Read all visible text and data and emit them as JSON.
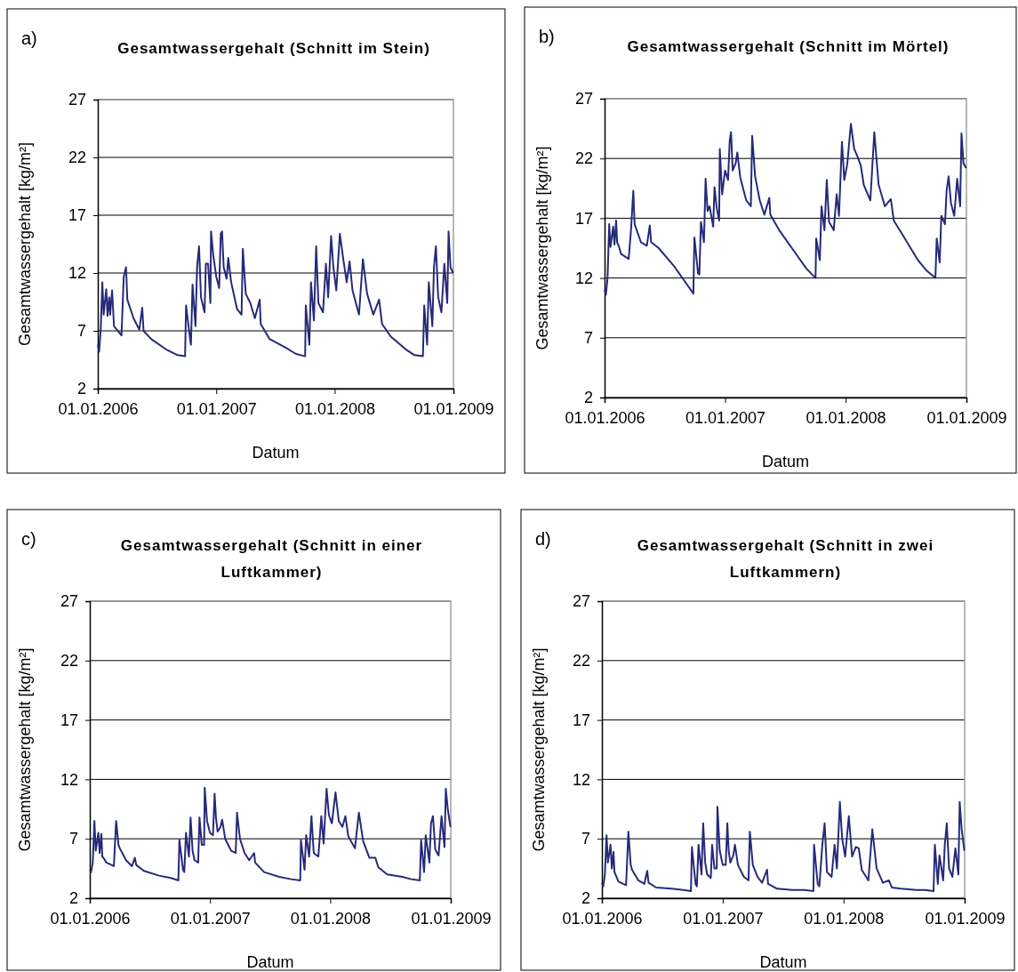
{
  "chart_data": [
    {
      "type": "line",
      "title": "Gesamtwassergehalt (Schnitt im Stein)",
      "xlabel": "Datum",
      "ylabel": "Gesamtwassergehalt [kg/m²]",
      "annotations": [
        "a)"
      ],
      "grid": "y",
      "xlim": [
        "2006-01-01",
        "2009-01-01"
      ],
      "xticks": [
        {
          "value": "2006-01-01",
          "label": "01.01.2006"
        },
        {
          "value": "2007-01-01",
          "label": "01.01.2007"
        },
        {
          "value": "2008-01-01",
          "label": "01.01.2008"
        },
        {
          "value": "2009-01-01",
          "label": "01.01.2009"
        }
      ],
      "ylim": [
        2,
        27
      ],
      "yticks": [
        2,
        7,
        12,
        17,
        22,
        27
      ],
      "x": [
        "2006-01-01",
        "2006-01-05",
        "2006-01-10",
        "2006-01-15",
        "2006-01-19",
        "2006-01-27",
        "2006-01-31",
        "2006-02-05",
        "2006-02-08",
        "2006-02-14",
        "2006-02-20",
        "2006-03-15",
        "2006-03-22",
        "2006-03-29",
        "2006-04-02",
        "2006-04-21",
        "2006-05-09",
        "2006-05-18",
        "2006-05-22",
        "2006-06-14",
        "2006-07-30",
        "2006-09-04",
        "2006-09-27",
        "2006-09-30",
        "2006-10-11",
        "2006-10-15",
        "2006-10-20",
        "2006-10-29",
        "2006-11-03",
        "2006-11-09",
        "2006-11-15",
        "2006-11-26",
        "2006-11-30",
        "2006-12-07",
        "2006-12-14",
        "2006-12-16",
        "2006-12-23",
        "2007-01-01",
        "2007-01-10",
        "2007-01-15",
        "2007-01-19",
        "2007-01-24",
        "2007-02-02",
        "2007-02-07",
        "2007-02-16",
        "2007-03-06",
        "2007-03-20",
        "2007-03-24",
        "2007-04-02",
        "2007-04-16",
        "2007-04-30",
        "2007-05-15",
        "2007-05-18",
        "2007-06-14",
        "2007-07-30",
        "2007-09-04",
        "2007-10-02",
        "2007-10-04",
        "2007-10-15",
        "2007-10-20",
        "2007-10-29",
        "2007-11-05",
        "2007-11-12",
        "2007-11-26",
        "2007-12-05",
        "2007-12-12",
        "2007-12-21",
        "2007-12-28",
        "2008-01-06",
        "2008-01-17",
        "2008-01-27",
        "2008-02-07",
        "2008-02-16",
        "2008-02-25",
        "2008-03-16",
        "2008-03-28",
        "2008-04-10",
        "2008-04-29",
        "2008-05-17",
        "2008-05-26",
        "2008-06-22",
        "2008-08-07",
        "2008-09-03",
        "2008-09-29",
        "2008-10-03",
        "2008-10-12",
        "2008-10-17",
        "2008-10-28",
        "2008-11-02",
        "2008-11-08",
        "2008-11-15",
        "2008-11-25",
        "2008-12-04",
        "2008-12-13",
        "2008-12-17",
        "2008-12-23",
        "2008-12-31"
      ],
      "series": [
        {
          "color": "#262a78",
          "values": [
            5.8,
            5.2,
            7.1,
            11.2,
            8.4,
            10.6,
            8.3,
            9.9,
            8.4,
            10.5,
            7.4,
            6.6,
            11.7,
            12.5,
            9.7,
            8.1,
            7.1,
            9.0,
            7.0,
            6.3,
            5.4,
            4.9,
            4.8,
            9.2,
            6.6,
            5.8,
            11.0,
            7.4,
            12.5,
            14.3,
            9.9,
            8.6,
            12.8,
            12.8,
            9.4,
            15.6,
            13.5,
            11.7,
            10.7,
            15.4,
            15.6,
            12.5,
            11.5,
            13.3,
            11.2,
            8.9,
            8.4,
            14.1,
            10.2,
            9.4,
            8.1,
            9.7,
            7.6,
            6.3,
            5.6,
            5.0,
            4.8,
            9.2,
            5.8,
            11.2,
            7.9,
            14.3,
            9.4,
            8.6,
            12.8,
            9.9,
            15.2,
            12.5,
            10.5,
            15.4,
            13.3,
            11.2,
            13.0,
            10.5,
            8.4,
            13.2,
            10.2,
            8.4,
            9.7,
            7.6,
            6.5,
            5.4,
            4.9,
            4.8,
            9.2,
            5.8,
            11.2,
            7.4,
            12.5,
            14.3,
            9.9,
            8.6,
            12.8,
            9.4,
            15.6,
            12.5,
            12.0
          ]
        }
      ]
    },
    {
      "type": "line",
      "title": "Gesamtwassergehalt (Schnitt im Mörtel)",
      "xlabel": "Datum",
      "ylabel": "Gesamtwassergehalt [kg/m²]",
      "annotations": [
        "b)"
      ],
      "grid": "y",
      "xlim": [
        "2006-01-01",
        "2009-01-01"
      ],
      "xticks": [
        {
          "value": "2006-01-01",
          "label": "01.01.2006"
        },
        {
          "value": "2007-01-01",
          "label": "01.01.2007"
        },
        {
          "value": "2008-01-01",
          "label": "01.01.2008"
        },
        {
          "value": "2009-01-01",
          "label": "01.01.2009"
        }
      ],
      "ylim": [
        2,
        27
      ],
      "yticks": [
        2,
        7,
        12,
        17,
        22,
        27
      ],
      "x": [
        "2006-01-01",
        "2006-01-05",
        "2006-01-10",
        "2006-01-15",
        "2006-01-19",
        "2006-01-27",
        "2006-01-31",
        "2006-02-05",
        "2006-02-08",
        "2006-02-14",
        "2006-02-20",
        "2006-03-15",
        "2006-03-22",
        "2006-03-29",
        "2006-04-02",
        "2006-04-21",
        "2006-05-09",
        "2006-05-18",
        "2006-05-22",
        "2006-06-14",
        "2006-07-30",
        "2006-09-04",
        "2006-09-27",
        "2006-09-30",
        "2006-10-11",
        "2006-10-15",
        "2006-10-20",
        "2006-10-29",
        "2006-11-03",
        "2006-11-09",
        "2006-11-15",
        "2006-11-26",
        "2006-11-30",
        "2006-12-07",
        "2006-12-14",
        "2006-12-16",
        "2006-12-23",
        "2007-01-01",
        "2007-01-10",
        "2007-01-15",
        "2007-01-19",
        "2007-01-24",
        "2007-02-02",
        "2007-02-07",
        "2007-02-16",
        "2007-03-06",
        "2007-03-20",
        "2007-03-24",
        "2007-04-02",
        "2007-04-16",
        "2007-04-30",
        "2007-05-15",
        "2007-05-18",
        "2007-06-14",
        "2007-07-30",
        "2007-09-04",
        "2007-10-02",
        "2007-10-04",
        "2007-10-15",
        "2007-10-20",
        "2007-10-29",
        "2007-11-05",
        "2007-11-12",
        "2007-11-26",
        "2007-12-05",
        "2007-12-12",
        "2007-12-21",
        "2007-12-28",
        "2008-01-06",
        "2008-01-17",
        "2008-01-27",
        "2008-02-07",
        "2008-02-16",
        "2008-02-25",
        "2008-03-16",
        "2008-03-28",
        "2008-04-10",
        "2008-04-29",
        "2008-05-17",
        "2008-05-26",
        "2008-06-22",
        "2008-08-07",
        "2008-09-03",
        "2008-09-29",
        "2008-10-03",
        "2008-10-12",
        "2008-10-17",
        "2008-10-28",
        "2008-11-02",
        "2008-11-08",
        "2008-11-15",
        "2008-11-25",
        "2008-12-04",
        "2008-12-13",
        "2008-12-17",
        "2008-12-23",
        "2008-12-31"
      ],
      "series": [
        {
          "color": "#262a78",
          "values": [
            11.0,
            10.6,
            12.0,
            16.5,
            14.6,
            16.3,
            14.8,
            16.8,
            15.0,
            14.6,
            14.0,
            13.6,
            16.0,
            19.3,
            16.5,
            15.0,
            14.7,
            16.4,
            15.0,
            14.5,
            13.0,
            11.6,
            10.7,
            15.4,
            12.4,
            12.3,
            16.7,
            15.0,
            20.3,
            17.6,
            18.0,
            16.3,
            19.6,
            17.8,
            16.8,
            22.8,
            19.0,
            21.0,
            20.2,
            23.5,
            24.2,
            21.0,
            21.6,
            22.5,
            20.4,
            18.5,
            18.0,
            23.9,
            20.5,
            18.5,
            17.3,
            18.7,
            17.3,
            16.0,
            14.2,
            12.8,
            12.0,
            15.3,
            13.5,
            18.0,
            16.0,
            20.2,
            16.7,
            16.0,
            19.0,
            17.2,
            23.4,
            20.2,
            21.5,
            24.9,
            22.8,
            22.1,
            21.4,
            19.8,
            18.5,
            24.2,
            19.8,
            18.0,
            18.6,
            16.8,
            15.6,
            13.5,
            12.6,
            12.0,
            15.3,
            13.3,
            17.2,
            16.5,
            19.3,
            20.5,
            18.3,
            17.2,
            20.3,
            18.0,
            24.1,
            21.6,
            21.2
          ]
        }
      ]
    },
    {
      "type": "line",
      "title": "Gesamtwassergehalt (Schnitt in einer Luftkammer)",
      "xlabel": "Datum",
      "ylabel": "Gesamtwassergehalt [kg/m²]",
      "annotations": [
        "c)"
      ],
      "grid": "y",
      "xlim": [
        "2006-01-01",
        "2009-01-01"
      ],
      "xticks": [
        {
          "value": "2006-01-01",
          "label": "01.01.2006"
        },
        {
          "value": "2007-01-01",
          "label": "01.01.2007"
        },
        {
          "value": "2008-01-01",
          "label": "01.01.2008"
        },
        {
          "value": "2009-01-01",
          "label": "01.01.2009"
        }
      ],
      "ylim": [
        2,
        27
      ],
      "yticks": [
        2,
        7,
        12,
        17,
        22,
        27
      ],
      "x": [
        "2006-01-01",
        "2006-01-05",
        "2006-01-10",
        "2006-01-15",
        "2006-01-19",
        "2006-01-27",
        "2006-01-31",
        "2006-02-05",
        "2006-02-08",
        "2006-02-14",
        "2006-02-20",
        "2006-03-15",
        "2006-03-22",
        "2006-03-29",
        "2006-04-02",
        "2006-04-21",
        "2006-05-09",
        "2006-05-18",
        "2006-05-22",
        "2006-06-14",
        "2006-07-30",
        "2006-09-04",
        "2006-09-27",
        "2006-09-30",
        "2006-10-11",
        "2006-10-15",
        "2006-10-20",
        "2006-10-29",
        "2006-11-03",
        "2006-11-09",
        "2006-11-15",
        "2006-11-26",
        "2006-11-30",
        "2006-12-07",
        "2006-12-14",
        "2006-12-16",
        "2006-12-23",
        "2007-01-01",
        "2007-01-10",
        "2007-01-15",
        "2007-01-19",
        "2007-01-24",
        "2007-02-02",
        "2007-02-07",
        "2007-02-16",
        "2007-03-06",
        "2007-03-20",
        "2007-03-24",
        "2007-04-02",
        "2007-04-16",
        "2007-04-30",
        "2007-05-15",
        "2007-05-18",
        "2007-06-14",
        "2007-07-30",
        "2007-09-04",
        "2007-10-02",
        "2007-10-04",
        "2007-10-15",
        "2007-10-20",
        "2007-10-29",
        "2007-11-05",
        "2007-11-12",
        "2007-11-26",
        "2007-12-05",
        "2007-12-12",
        "2007-12-21",
        "2007-12-28",
        "2008-01-06",
        "2008-01-17",
        "2008-01-27",
        "2008-02-07",
        "2008-02-16",
        "2008-02-25",
        "2008-03-16",
        "2008-03-28",
        "2008-04-10",
        "2008-04-29",
        "2008-05-17",
        "2008-05-26",
        "2008-06-22",
        "2008-08-07",
        "2008-09-03",
        "2008-09-29",
        "2008-10-03",
        "2008-10-12",
        "2008-10-17",
        "2008-10-28",
        "2008-11-02",
        "2008-11-08",
        "2008-11-15",
        "2008-11-25",
        "2008-12-04",
        "2008-12-13",
        "2008-12-17",
        "2008-12-23",
        "2008-12-31"
      ],
      "series": [
        {
          "color": "#262a78",
          "values": [
            4.4,
            4.2,
            5.0,
            8.5,
            6.0,
            7.5,
            5.8,
            7.4,
            5.5,
            5.3,
            5.0,
            4.7,
            8.5,
            6.5,
            6.2,
            5.2,
            4.7,
            5.4,
            4.8,
            4.3,
            3.9,
            3.7,
            3.5,
            6.9,
            4.4,
            4.2,
            7.5,
            5.5,
            8.8,
            6.0,
            5.2,
            5.0,
            8.8,
            6.5,
            6.5,
            11.3,
            8.5,
            7.5,
            7.3,
            10.8,
            8.8,
            7.6,
            8.0,
            8.6,
            7.0,
            6.0,
            5.8,
            9.2,
            7.0,
            5.8,
            5.2,
            5.8,
            5.0,
            4.2,
            3.8,
            3.6,
            3.5,
            6.9,
            4.4,
            7.3,
            5.5,
            8.9,
            5.8,
            5.5,
            8.9,
            6.6,
            11.2,
            9.0,
            8.3,
            10.9,
            8.5,
            8.0,
            8.9,
            7.2,
            6.2,
            9.2,
            6.8,
            5.4,
            5.4,
            4.6,
            4.0,
            3.8,
            3.6,
            3.5,
            6.9,
            4.2,
            7.3,
            5.0,
            8.3,
            8.9,
            6.1,
            5.6,
            8.9,
            6.3,
            11.2,
            9.5,
            8.0
          ]
        }
      ]
    },
    {
      "type": "line",
      "title": "Gesamtwassergehalt (Schnitt in zwei Luftkammern)",
      "xlabel": "Datum",
      "ylabel": "Gesamtwassergehalt [kg/m²]",
      "annotations": [
        "d)"
      ],
      "grid": "y",
      "xlim": [
        "2006-01-01",
        "2009-01-01"
      ],
      "xticks": [
        {
          "value": "2006-01-01",
          "label": "01.01.2006"
        },
        {
          "value": "2007-01-01",
          "label": "01.01.2007"
        },
        {
          "value": "2008-01-01",
          "label": "01.01.2008"
        },
        {
          "value": "2009-01-01",
          "label": "01.01.2009"
        }
      ],
      "ylim": [
        2,
        27
      ],
      "yticks": [
        2,
        7,
        12,
        17,
        22,
        27
      ],
      "x": [
        "2006-01-01",
        "2006-01-05",
        "2006-01-10",
        "2006-01-15",
        "2006-01-19",
        "2006-01-27",
        "2006-01-31",
        "2006-02-05",
        "2006-02-08",
        "2006-02-14",
        "2006-02-20",
        "2006-03-15",
        "2006-03-22",
        "2006-03-29",
        "2006-04-02",
        "2006-04-21",
        "2006-05-09",
        "2006-05-18",
        "2006-05-22",
        "2006-06-14",
        "2006-07-30",
        "2006-09-04",
        "2006-09-27",
        "2006-09-30",
        "2006-10-11",
        "2006-10-15",
        "2006-10-20",
        "2006-10-29",
        "2006-11-03",
        "2006-11-09",
        "2006-11-15",
        "2006-11-26",
        "2006-11-30",
        "2006-12-07",
        "2006-12-14",
        "2006-12-16",
        "2006-12-23",
        "2007-01-01",
        "2007-01-10",
        "2007-01-15",
        "2007-01-19",
        "2007-01-24",
        "2007-02-02",
        "2007-02-07",
        "2007-02-16",
        "2007-03-06",
        "2007-03-20",
        "2007-03-24",
        "2007-04-02",
        "2007-04-16",
        "2007-04-30",
        "2007-05-15",
        "2007-05-18",
        "2007-06-14",
        "2007-07-30",
        "2007-09-04",
        "2007-10-02",
        "2007-10-04",
        "2007-10-15",
        "2007-10-20",
        "2007-10-29",
        "2007-11-05",
        "2007-11-12",
        "2007-11-26",
        "2007-12-05",
        "2007-12-12",
        "2007-12-21",
        "2007-12-28",
        "2008-01-06",
        "2008-01-17",
        "2008-01-27",
        "2008-02-07",
        "2008-02-16",
        "2008-02-25",
        "2008-03-16",
        "2008-03-28",
        "2008-04-10",
        "2008-04-29",
        "2008-05-17",
        "2008-05-26",
        "2008-06-22",
        "2008-08-07",
        "2008-09-03",
        "2008-09-29",
        "2008-10-03",
        "2008-10-12",
        "2008-10-17",
        "2008-10-28",
        "2008-11-02",
        "2008-11-08",
        "2008-11-15",
        "2008-11-25",
        "2008-12-04",
        "2008-12-13",
        "2008-12-17",
        "2008-12-23",
        "2008-12-31"
      ],
      "series": [
        {
          "color": "#262a78",
          "values": [
            3.3,
            3.0,
            4.0,
            7.3,
            5.0,
            6.5,
            4.5,
            5.9,
            4.2,
            3.8,
            3.4,
            3.1,
            7.6,
            4.8,
            4.4,
            3.5,
            3.2,
            4.3,
            3.3,
            2.9,
            2.8,
            2.7,
            2.6,
            6.3,
            3.2,
            3.0,
            6.5,
            4.0,
            8.3,
            5.0,
            4.0,
            3.7,
            6.5,
            4.5,
            4.5,
            9.7,
            6.0,
            4.8,
            4.8,
            8.3,
            6.0,
            5.0,
            5.6,
            6.5,
            4.8,
            3.8,
            3.5,
            7.6,
            4.8,
            3.8,
            3.3,
            4.4,
            3.2,
            2.8,
            2.7,
            2.7,
            2.6,
            6.5,
            3.2,
            3.0,
            6.5,
            8.3,
            4.2,
            3.8,
            6.5,
            4.5,
            10.1,
            7.0,
            5.5,
            8.9,
            5.5,
            6.3,
            6.2,
            4.4,
            3.5,
            7.8,
            4.5,
            3.3,
            3.5,
            2.9,
            2.8,
            2.7,
            2.7,
            2.6,
            6.5,
            3.2,
            5.6,
            3.5,
            6.5,
            8.3,
            4.5,
            3.8,
            6.2,
            4.0,
            10.1,
            7.8,
            6.0
          ]
        }
      ]
    }
  ]
}
